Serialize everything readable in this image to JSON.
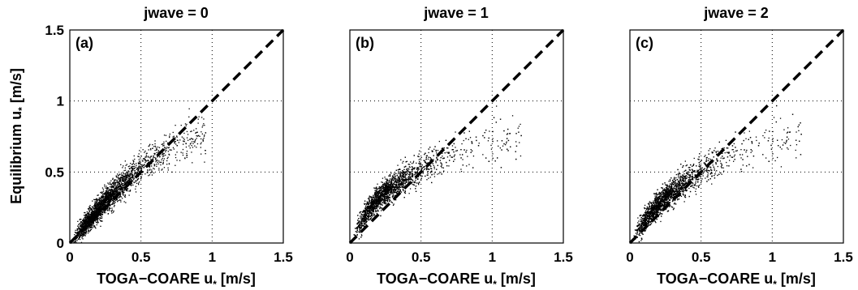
{
  "chart_data": [
    {
      "type": "scatter",
      "title": "jwave = 0",
      "panel_label": "(a)",
      "xlabel": "TOGA−COARE u",
      "xlabel_sub": "*",
      "xlabel_unit": " [m/s]",
      "ylabel": "Equilibrium u",
      "ylabel_sub": "*",
      "ylabel_unit": " [m/s]",
      "xlim": [
        0,
        1.5
      ],
      "ylim": [
        0,
        1.5
      ],
      "xticks": [
        "0",
        "0.5",
        "1",
        "1.5"
      ],
      "yticks": [
        "0",
        "0.5",
        "1",
        "1.5"
      ],
      "grid": true,
      "reference_line": {
        "x": [
          0,
          1.5
        ],
        "y": [
          0,
          1.5
        ],
        "style": "dashed"
      },
      "series": [
        {
          "x": [
            0.05,
            0.08,
            0.12,
            0.15,
            0.18,
            0.2,
            0.22,
            0.25,
            0.28,
            0.3,
            0.32,
            0.35,
            0.38,
            0.4,
            0.42,
            0.45,
            0.48,
            0.5,
            0.55,
            0.6,
            0.65,
            0.7,
            0.75,
            0.8,
            0.85,
            0.9,
            0.95
          ],
          "y": [
            0.06,
            0.1,
            0.15,
            0.18,
            0.22,
            0.24,
            0.27,
            0.3,
            0.33,
            0.35,
            0.37,
            0.4,
            0.42,
            0.44,
            0.46,
            0.49,
            0.51,
            0.53,
            0.57,
            0.6,
            0.63,
            0.66,
            0.69,
            0.72,
            0.74,
            0.76,
            0.78
          ]
        }
      ]
    },
    {
      "type": "scatter",
      "title": "jwave = 1",
      "panel_label": "(b)",
      "xlabel": "TOGA−COARE u",
      "xlabel_sub": "*",
      "xlabel_unit": " [m/s]",
      "xlim": [
        0,
        1.5
      ],
      "ylim": [
        0,
        1.5
      ],
      "xticks": [
        "0",
        "0.5",
        "1",
        "1.5"
      ],
      "grid": true,
      "reference_line": {
        "x": [
          0,
          1.5
        ],
        "y": [
          0,
          1.5
        ],
        "style": "dashed"
      },
      "series": [
        {
          "x": [
            0.03,
            0.06,
            0.1,
            0.14,
            0.18,
            0.22,
            0.26,
            0.3,
            0.34,
            0.38,
            0.42,
            0.46,
            0.5,
            0.55,
            0.6,
            0.65,
            0.7,
            0.8,
            0.9,
            1.0,
            1.1,
            1.2
          ],
          "y": [
            0.06,
            0.12,
            0.19,
            0.25,
            0.3,
            0.34,
            0.37,
            0.4,
            0.43,
            0.45,
            0.47,
            0.5,
            0.52,
            0.55,
            0.58,
            0.6,
            0.62,
            0.66,
            0.69,
            0.72,
            0.74,
            0.76
          ]
        }
      ]
    },
    {
      "type": "scatter",
      "title": "jwave = 2",
      "panel_label": "(c)",
      "xlabel": "TOGA−COARE u",
      "xlabel_sub": "*",
      "xlabel_unit": " [m/s]",
      "xlim": [
        0,
        1.5
      ],
      "ylim": [
        0,
        1.5
      ],
      "xticks": [
        "0",
        "0.5",
        "1",
        "1.5"
      ],
      "grid": true,
      "reference_line": {
        "x": [
          0,
          1.5
        ],
        "y": [
          0,
          1.5
        ],
        "style": "dashed"
      },
      "series": [
        {
          "x": [
            0.03,
            0.06,
            0.1,
            0.14,
            0.18,
            0.22,
            0.26,
            0.3,
            0.34,
            0.38,
            0.42,
            0.46,
            0.5,
            0.55,
            0.6,
            0.65,
            0.7,
            0.8,
            0.9,
            1.0,
            1.1,
            1.2
          ],
          "y": [
            0.05,
            0.1,
            0.16,
            0.21,
            0.26,
            0.3,
            0.33,
            0.37,
            0.4,
            0.42,
            0.45,
            0.48,
            0.5,
            0.54,
            0.57,
            0.6,
            0.62,
            0.66,
            0.69,
            0.72,
            0.75,
            0.77
          ]
        }
      ]
    }
  ]
}
